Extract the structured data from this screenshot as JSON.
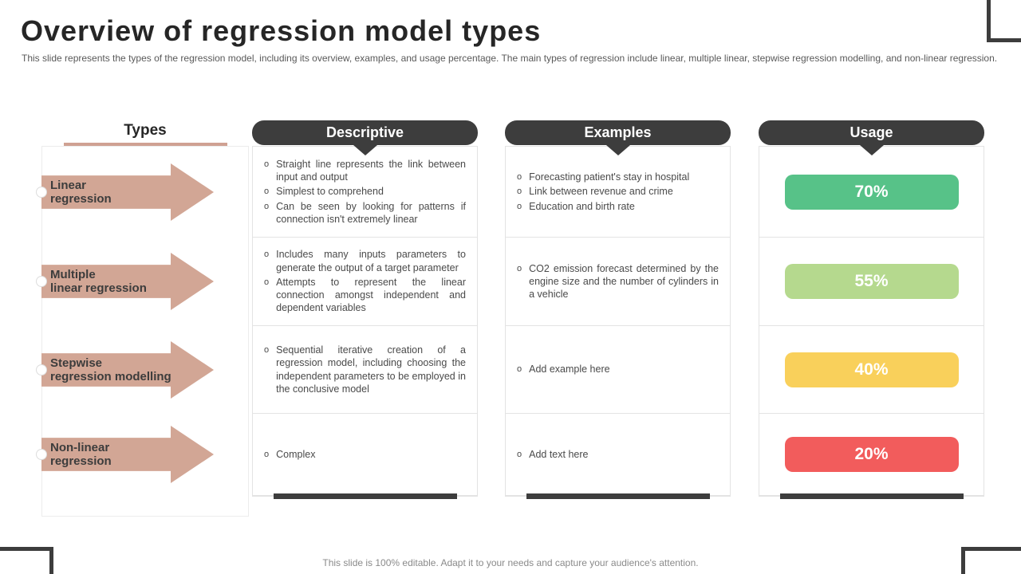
{
  "slide": {
    "title": "Overview of regression model types",
    "subtitle": "This slide represents the types of the regression model, including its overview, examples, and usage percentage. The main types of regression include linear, multiple linear, stepwise regression modelling, and non-linear regression.",
    "footer": "This slide is 100% editable. Adapt it to your needs and capture your audience's attention."
  },
  "colors": {
    "header_bg": "#3d3d3d",
    "arrow": "#d2a695",
    "types_underline": "#cfa192",
    "usage_badges": [
      "#57c288",
      "#b5d98e",
      "#f9d05b",
      "#f25c5c"
    ]
  },
  "table": {
    "marker": "o",
    "types_header": "Types",
    "col_headers": [
      "Descriptive",
      "Examples",
      "Usage"
    ],
    "rows": [
      {
        "type_label": "Linear\nregression",
        "descriptive": [
          "Straight line represents the link between input and output",
          "Simplest to comprehend",
          "Can be seen by looking for patterns if connection isn't extremely linear"
        ],
        "examples": [
          "Forecasting patient's stay in hospital",
          "Link between revenue and crime",
          "Education and birth rate"
        ],
        "usage": "70%"
      },
      {
        "type_label": "Multiple\nlinear regression",
        "descriptive": [
          "Includes many inputs parameters to generate the output of a target parameter",
          "Attempts to represent the linear connection amongst independent and dependent variables"
        ],
        "examples": [
          "CO2 emission forecast determined by the engine size and the number of cylinders in a vehicle"
        ],
        "usage": "55%"
      },
      {
        "type_label": "Stepwise\nregression modelling",
        "descriptive": [
          "Sequential iterative creation of a regression model, including choosing the independent parameters to be employed in the conclusive model"
        ],
        "examples": [
          "Add example here"
        ],
        "usage": "40%"
      },
      {
        "type_label": "Non-linear\nregression",
        "descriptive": [
          "Complex"
        ],
        "examples": [
          "Add text here"
        ],
        "usage": "20%"
      }
    ]
  }
}
